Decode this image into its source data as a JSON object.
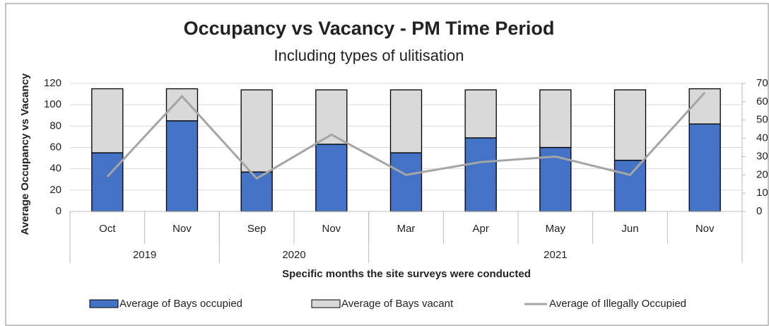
{
  "chart_data": {
    "type": "stacked_bar_line",
    "title": "Occupancy vs Vacancy - PM Time Period",
    "subtitle": "Including types of ulitisation",
    "y_label": "Average  Occupancy vs Vacancy",
    "x_label": "Specific months the site surveys were conducted",
    "categories": [
      "Oct",
      "Nov",
      "Sep",
      "Nov",
      "Mar",
      "Apr",
      "May",
      "Jun",
      "Nov"
    ],
    "year_groups": [
      {
        "name": "2019",
        "count": 2
      },
      {
        "name": "2020",
        "count": 2
      },
      {
        "name": "2021",
        "count": 5
      }
    ],
    "series": [
      {
        "name": "Average of Bays occupied",
        "color": "#4472c4",
        "kind": "bar",
        "values": [
          55,
          85,
          37,
          63,
          55,
          69,
          60,
          48,
          82
        ]
      },
      {
        "name": "Average of Bays vacant",
        "color": "#d9d9d9",
        "kind": "bar",
        "values": [
          60,
          30,
          77,
          51,
          59,
          45,
          54,
          66,
          33
        ]
      },
      {
        "name": "Average of Illegally Occupied",
        "color": "#a5a5a5",
        "kind": "line",
        "axis": "y2",
        "values": [
          19,
          63,
          18,
          42,
          20,
          27,
          30,
          20,
          65
        ]
      }
    ],
    "ylim": [
      0,
      120
    ],
    "yticks": [
      0,
      20,
      40,
      60,
      80,
      100,
      120
    ],
    "y2lim": [
      0,
      70
    ],
    "y2ticks": [
      0,
      10,
      20,
      30,
      40,
      50,
      60,
      70
    ],
    "grid": true
  }
}
